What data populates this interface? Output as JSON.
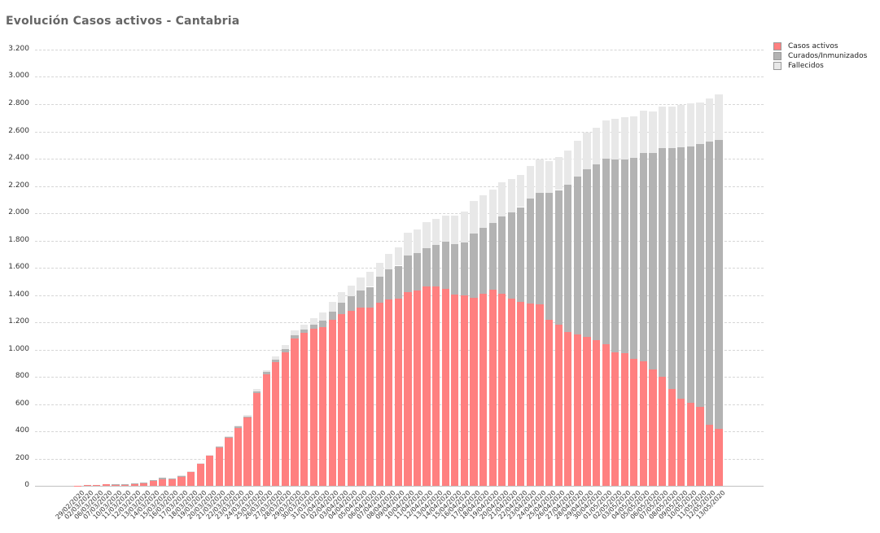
{
  "title": "Evolución Casos activos - Cantabria",
  "legend": [
    {
      "label": "Casos activos",
      "color": "#ff8080"
    },
    {
      "label": "Curados/Inmunizados",
      "color": "#b3b3b3"
    },
    {
      "label": "Fallecidos",
      "color": "#e8e8e8"
    }
  ],
  "y_ticks": [
    "0",
    "200",
    "400",
    "600",
    "800",
    "1.000",
    "1.200",
    "1.400",
    "1.600",
    "1.800",
    "2.000",
    "2.200",
    "2.400",
    "2.600",
    "2.800",
    "3.000",
    "3.200"
  ],
  "chart_data": {
    "type": "bar",
    "stacked": true,
    "title": "Evolución Casos activos - Cantabria",
    "xlabel": "",
    "ylabel": "",
    "ylim": [
      0,
      3200
    ],
    "grid": true,
    "legend_position": "right-top",
    "categories": [
      "29/02/2020",
      "02/03/2020",
      "06/03/2020",
      "07/03/2020",
      "10/03/2020",
      "11/03/2020",
      "12/03/2020",
      "13/03/2020",
      "14/03/2020",
      "15/03/2020",
      "16/03/2020",
      "17/03/2020",
      "18/03/2020",
      "19/03/2020",
      "20/03/2020",
      "21/03/2020",
      "22/03/2020",
      "23/03/2020",
      "24/03/2020",
      "25/03/2020",
      "26/03/2020",
      "27/03/2020",
      "28/03/2020",
      "29/03/2020",
      "30/03/2020",
      "31/03/2020",
      "01/04/2020",
      "02/04/2020",
      "03/04/2020",
      "04/04/2020",
      "05/04/2020",
      "06/04/2020",
      "07/04/2020",
      "08/04/2020",
      "09/04/2020",
      "10/04/2020",
      "11/04/2020",
      "12/04/2020",
      "13/04/2020",
      "14/04/2020",
      "15/04/2020",
      "16/04/2020",
      "17/04/2020",
      "18/04/2020",
      "19/04/2020",
      "20/04/2020",
      "21/04/2020",
      "22/04/2020",
      "23/04/2020",
      "24/04/2020",
      "25/04/2020",
      "26/04/2020",
      "27/04/2020",
      "28/04/2020",
      "29/04/2020",
      "30/04/2020",
      "01/05/2020",
      "02/05/2020",
      "03/05/2020",
      "04/05/2020",
      "05/05/2020",
      "06/05/2020",
      "07/05/2020",
      "08/05/2020",
      "09/05/2020",
      "10/05/2020",
      "11/05/2020",
      "12/05/2020",
      "13/05/2020"
    ],
    "series": [
      {
        "name": "Casos activos",
        "color": "#ff8080",
        "values": [
          1,
          5,
          6,
          10,
          10,
          8,
          14,
          25,
          40,
          48,
          52,
          68,
          100,
          160,
          220,
          285,
          355,
          425,
          500,
          680,
          820,
          910,
          980,
          1080,
          1120,
          1150,
          1165,
          1215,
          1260,
          1285,
          1310,
          1310,
          1340,
          1370,
          1375,
          1420,
          1430,
          1460,
          1465,
          1445,
          1400,
          1395,
          1380,
          1410,
          1440,
          1410,
          1370,
          1350,
          1335,
          1330,
          1220,
          1180,
          1130,
          1110,
          1090,
          1070,
          1040,
          980,
          975,
          930,
          915,
          855,
          800,
          710,
          640,
          610,
          580,
          450,
          420
        ]
      },
      {
        "name": "Curados/Inmunizados",
        "color": "#b3b3b3",
        "values": [
          0,
          0,
          0,
          0,
          2,
          3,
          2,
          2,
          5,
          10,
          5,
          5,
          5,
          5,
          5,
          5,
          5,
          10,
          10,
          15,
          15,
          15,
          20,
          25,
          25,
          35,
          45,
          65,
          85,
          105,
          125,
          150,
          195,
          220,
          240,
          270,
          275,
          285,
          300,
          345,
          370,
          390,
          470,
          480,
          490,
          565,
          635,
          695,
          770,
          820,
          930,
          990,
          1080,
          1160,
          1230,
          1290,
          1360,
          1415,
          1420,
          1475,
          1525,
          1585,
          1675,
          1770,
          1845,
          1880,
          1925,
          2075,
          2115
        ]
      },
      {
        "name": "Fallecidos",
        "color": "#e8e8e8",
        "values": [
          0,
          0,
          0,
          0,
          0,
          0,
          0,
          0,
          0,
          0,
          0,
          3,
          5,
          5,
          2,
          3,
          5,
          5,
          12,
          15,
          15,
          25,
          35,
          35,
          35,
          45,
          60,
          70,
          75,
          80,
          95,
          110,
          100,
          110,
          135,
          165,
          175,
          190,
          195,
          195,
          210,
          225,
          240,
          240,
          245,
          250,
          245,
          235,
          240,
          245,
          230,
          240,
          250,
          260,
          270,
          270,
          280,
          295,
          310,
          305,
          310,
          305,
          310,
          305,
          310,
          315,
          310,
          320,
          335
        ]
      }
    ]
  }
}
